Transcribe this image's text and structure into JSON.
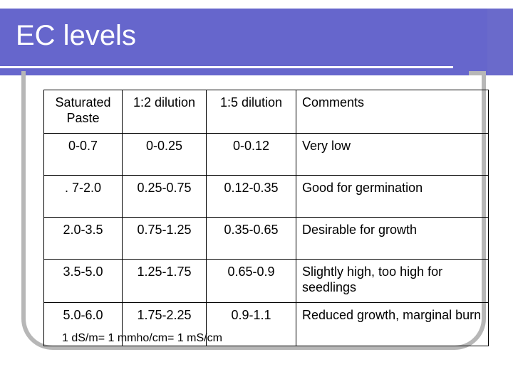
{
  "slide": {
    "title": "EC levels",
    "footnote": "1 dS/m= 1 mmho/cm= 1 mS/cm"
  },
  "table": {
    "headers": [
      "Saturated Paste",
      "1:2 dilution",
      "1:5 dilution",
      "Comments"
    ],
    "rows": [
      [
        "0-0.7",
        "0-0.25",
        "0-0.12",
        "Very low"
      ],
      [
        ". 7-2.0",
        "0.25-0.75",
        "0.12-0.35",
        "Good for germination"
      ],
      [
        "2.0-3.5",
        "0.75-1.25",
        "0.35-0.65",
        "Desirable for growth"
      ],
      [
        "3.5-5.0",
        "1.25-1.75",
        "0.65-0.9",
        "Slightly high, too high for seedlings"
      ],
      [
        "5.0-6.0",
        "1.75-2.25",
        "0.9-1.1",
        "Reduced growth, marginal burn"
      ]
    ]
  },
  "colors": {
    "title_bar": "#6666cc",
    "frame": "#b7b7b7",
    "title_text": "#ffffff"
  }
}
